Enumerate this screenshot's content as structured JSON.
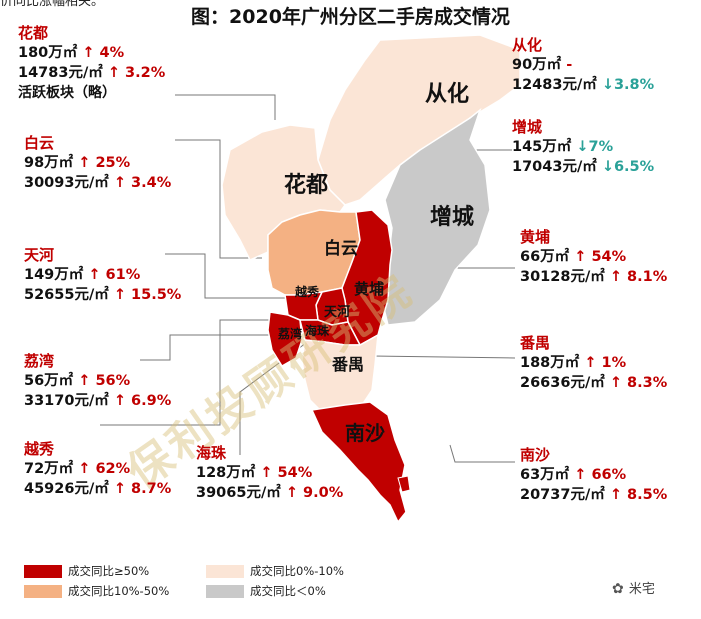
{
  "cutoff_text": "价同比涨幅相关。",
  "title": "图：2020年广州分区二手房成交情况",
  "watermark": "保利投顾研究院",
  "brand": "米宅",
  "colors": {
    "tier1": "#c00000",
    "tier2": "#f4b183",
    "tier3": "#fbe5d6",
    "tier4": "#c9c9c9",
    "up": "#c00000",
    "down": "#2aa198"
  },
  "districts": {
    "huadu": {
      "name": "花都",
      "volume": "180万㎡",
      "volume_change": "↑ 4%",
      "price": "14783元/㎡",
      "price_change": "↑ 3.2%",
      "note": "活跃板块（略）",
      "map_label": "花都"
    },
    "conghua": {
      "name": "从化",
      "volume": "90万㎡",
      "volume_change": "-",
      "price": "12483元/㎡",
      "price_change": "↓3.8%",
      "map_label": "从化"
    },
    "baiyun": {
      "name": "白云",
      "volume": "98万㎡",
      "volume_change": "↑ 25%",
      "price": "30093元/㎡",
      "price_change": "↑ 3.4%",
      "map_label": "白云"
    },
    "zengcheng": {
      "name": "增城",
      "volume": "145万㎡",
      "volume_change": "↓7%",
      "price": "17043元/㎡",
      "price_change": "↓6.5%",
      "map_label": "增城"
    },
    "tianhe": {
      "name": "天河",
      "volume": "149万㎡",
      "volume_change": "↑ 61%",
      "price": "52655元/㎡",
      "price_change": "↑ 15.5%",
      "map_label": "天河"
    },
    "huangpu": {
      "name": "黄埔",
      "volume": "66万㎡",
      "volume_change": "↑ 54%",
      "price": "30128元/㎡",
      "price_change": "↑ 8.1%",
      "map_label": "黄埔"
    },
    "liwan": {
      "name": "荔湾",
      "volume": "56万㎡",
      "volume_change": "↑ 56%",
      "price": "33170元/㎡",
      "price_change": "↑ 6.9%",
      "map_label": "荔湾"
    },
    "panyu": {
      "name": "番禺",
      "volume": "188万㎡",
      "volume_change": "↑ 1%",
      "price": "26636元/㎡",
      "price_change": "↑ 8.3%",
      "map_label": "番禺"
    },
    "yuexiu": {
      "name": "越秀",
      "volume": "72万㎡",
      "volume_change": "↑ 62%",
      "price": "45926元/㎡",
      "price_change": "↑ 8.7%",
      "map_label": "越秀"
    },
    "haizhu": {
      "name": "海珠",
      "volume": "128万㎡",
      "volume_change": "↑ 54%",
      "price": "39065元/㎡",
      "price_change": "↑ 9.0%",
      "map_label": "海珠"
    },
    "nansha": {
      "name": "南沙",
      "volume": "63万㎡",
      "volume_change": "↑ 66%",
      "price": "20737元/㎡",
      "price_change": "↑ 8.5%",
      "map_label": "南沙"
    }
  },
  "legend": [
    {
      "label": "成交同比≥50%",
      "color": "#c00000"
    },
    {
      "label": "成交同比10%-50%",
      "color": "#f4b183"
    },
    {
      "label": "成交同比0%-10%",
      "color": "#fbe5d6"
    },
    {
      "label": "成交同比＜0%",
      "color": "#c9c9c9"
    }
  ]
}
